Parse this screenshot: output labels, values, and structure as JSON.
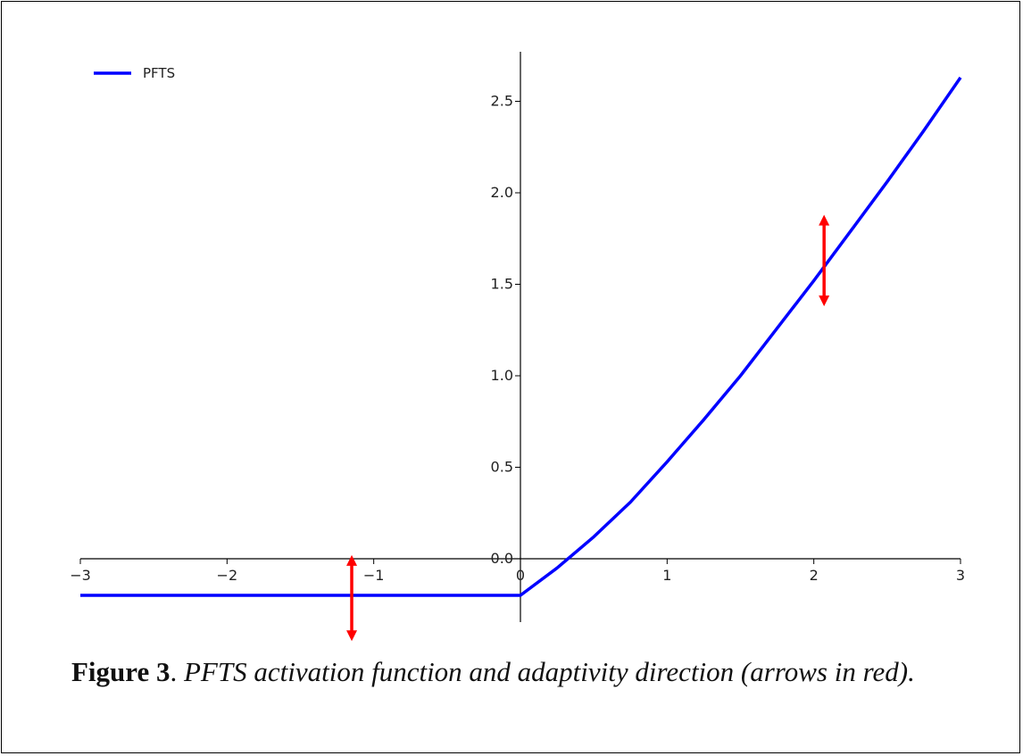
{
  "chart_data": {
    "type": "line",
    "xlim": [
      -3,
      3
    ],
    "ylim": [
      -0.4,
      2.8
    ],
    "x_ticks": [
      -3,
      -2,
      -1,
      0,
      1,
      2,
      3
    ],
    "x_tick_labels": [
      "−3",
      "−2",
      "−1",
      "0",
      "1",
      "2",
      "3"
    ],
    "y_ticks": [
      0.0,
      0.5,
      1.0,
      1.5,
      2.0,
      2.5
    ],
    "y_tick_labels": [
      "0.0",
      "0.5",
      "1.0",
      "1.5",
      "2.0",
      "2.5"
    ],
    "grid": false,
    "legend_position": "top-left",
    "series": [
      {
        "name": "PFTS",
        "color": "#0000ff",
        "x": [
          -3,
          -2.5,
          -2,
          -1.5,
          -1,
          -0.5,
          0,
          0.25,
          0.5,
          0.75,
          1,
          1.25,
          1.5,
          1.75,
          2,
          2.25,
          2.5,
          2.75,
          3
        ],
        "y": [
          -0.2,
          -0.2,
          -0.2,
          -0.2,
          -0.2,
          -0.2,
          -0.2,
          -0.05,
          0.12,
          0.31,
          0.53,
          0.76,
          1.0,
          1.26,
          1.52,
          1.79,
          2.06,
          2.34,
          2.63
        ]
      }
    ],
    "annotations": [
      {
        "type": "double-arrow",
        "color": "#ff0000",
        "x": -1.15,
        "y_from": -0.45,
        "y_to": 0.02
      },
      {
        "type": "double-arrow",
        "color": "#ff0000",
        "x": 2.07,
        "y_from": 1.38,
        "y_to": 1.88
      }
    ]
  },
  "caption": {
    "label": "Figure 3",
    "separator": ".",
    "text": " PFTS activation function and adaptivity direction (arrows in red)."
  }
}
